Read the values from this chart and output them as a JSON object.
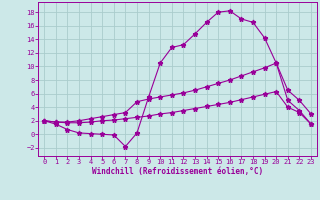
{
  "bg_color": "#cce8e8",
  "grid_color": "#aacccc",
  "line_color": "#990099",
  "xlabel": "Windchill (Refroidissement éolien,°C)",
  "xlim": [
    -0.5,
    23.5
  ],
  "ylim": [
    -3.2,
    19.5
  ],
  "xticks": [
    0,
    1,
    2,
    3,
    4,
    5,
    6,
    7,
    8,
    9,
    10,
    11,
    12,
    13,
    14,
    15,
    16,
    17,
    18,
    19,
    20,
    21,
    22,
    23
  ],
  "yticks": [
    -2,
    0,
    2,
    4,
    6,
    8,
    10,
    12,
    14,
    16,
    18
  ],
  "line1_x": [
    0,
    1,
    2,
    3,
    4,
    5,
    6,
    7,
    8,
    9,
    10,
    11,
    12,
    13,
    14,
    15,
    16,
    17,
    18,
    19,
    20,
    21,
    22,
    23
  ],
  "line1_y": [
    2.0,
    1.5,
    0.7,
    0.2,
    0.1,
    0.0,
    -0.1,
    -1.8,
    0.2,
    5.5,
    10.5,
    12.8,
    13.2,
    14.8,
    16.5,
    18.0,
    18.2,
    17.0,
    16.5,
    14.2,
    10.5,
    6.5,
    5.0,
    3.0
  ],
  "line2_x": [
    0,
    1,
    2,
    3,
    4,
    5,
    6,
    7,
    8,
    9,
    10,
    11,
    12,
    13,
    14,
    15,
    16,
    17,
    18,
    19,
    20,
    21,
    22,
    23
  ],
  "line2_y": [
    2.0,
    1.8,
    1.8,
    2.0,
    2.3,
    2.6,
    2.9,
    3.2,
    4.8,
    5.2,
    5.5,
    5.8,
    6.1,
    6.5,
    7.0,
    7.5,
    8.0,
    8.6,
    9.2,
    9.8,
    10.5,
    5.0,
    3.5,
    1.5
  ],
  "line3_x": [
    0,
    1,
    2,
    3,
    4,
    5,
    6,
    7,
    8,
    9,
    10,
    11,
    12,
    13,
    14,
    15,
    16,
    17,
    18,
    19,
    20,
    21,
    22,
    23
  ],
  "line3_y": [
    2.0,
    1.8,
    1.7,
    1.7,
    1.8,
    2.0,
    2.1,
    2.3,
    2.5,
    2.7,
    3.0,
    3.2,
    3.5,
    3.8,
    4.1,
    4.4,
    4.7,
    5.1,
    5.5,
    5.9,
    6.3,
    4.0,
    3.2,
    1.5
  ]
}
